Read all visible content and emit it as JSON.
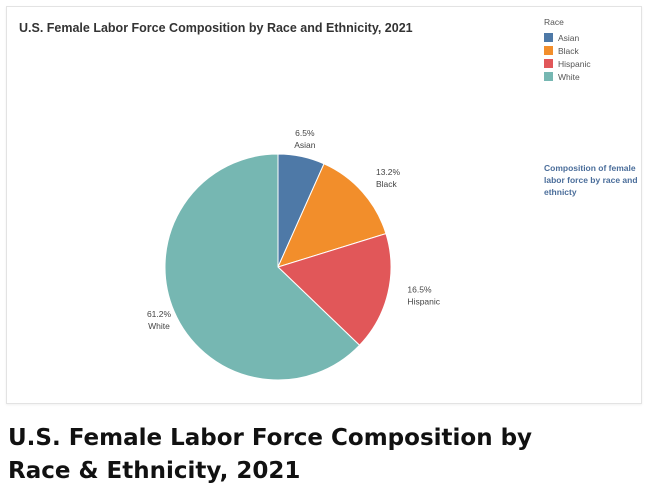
{
  "chart_data": {
    "type": "pie",
    "title": "U.S. Female Labor Force Composition by Race and Ethnicity, 2021",
    "legend_title": "Race",
    "legend_placement": "top-right",
    "categories": [
      "Asian",
      "Black",
      "Hispanic",
      "White"
    ],
    "values": [
      6.5,
      13.2,
      16.5,
      61.2
    ],
    "value_labels": [
      "6.5%",
      "13.2%",
      "16.5%",
      "61.2%"
    ],
    "colors": [
      "#4e79a7",
      "#f28e2b",
      "#e15759",
      "#76b7b2"
    ],
    "annotation": "Composition of female labor force by race and ethnicty"
  },
  "caption": {
    "line1": "U.S. Female Labor Force Composition by",
    "line2": "Race & Ethnicity, 2021"
  }
}
